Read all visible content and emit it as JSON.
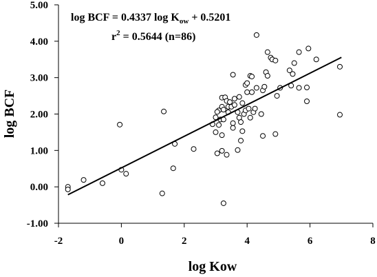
{
  "chart_data": {
    "type": "scatter",
    "title": "",
    "xlabel": "log Kow",
    "ylabel": "log BCF",
    "xlim": [
      -2,
      8
    ],
    "ylim": [
      -1,
      5
    ],
    "x_ticks": [
      "-2",
      "0",
      "2",
      "4",
      "6",
      "8"
    ],
    "y_ticks": [
      "-1.00",
      "0.00",
      "1.00",
      "2.00",
      "3.00",
      "4.00",
      "5.00"
    ],
    "grid": false,
    "legend": "none",
    "annotation": {
      "equation_prefix": "log BCF = 0.4337 log K",
      "equation_sub": "ow",
      "equation_suffix": " + 0.5201",
      "r2_prefix": "r",
      "r2_sup": "2",
      "r2_suffix": " = 0.5644 (n=86)"
    },
    "regression": {
      "slope": 0.4337,
      "intercept": 0.5201,
      "x_range": [
        -1.7,
        7.0
      ]
    },
    "points": [
      [
        -1.7,
        0.0
      ],
      [
        -1.7,
        -0.07
      ],
      [
        -1.2,
        0.19
      ],
      [
        -0.6,
        0.1
      ],
      [
        -0.05,
        1.71
      ],
      [
        0.0,
        0.47
      ],
      [
        0.15,
        0.36
      ],
      [
        1.3,
        -0.18
      ],
      [
        1.35,
        2.07
      ],
      [
        1.65,
        0.51
      ],
      [
        1.7,
        1.18
      ],
      [
        2.3,
        1.04
      ],
      [
        2.9,
        1.72
      ],
      [
        3.0,
        1.91
      ],
      [
        3.0,
        1.5
      ],
      [
        3.05,
        0.92
      ],
      [
        3.1,
        1.7
      ],
      [
        3.15,
        1.85
      ],
      [
        3.1,
        2.1
      ],
      [
        3.2,
        2.45
      ],
      [
        3.2,
        2.2
      ],
      [
        3.2,
        1.42
      ],
      [
        3.2,
        0.99
      ],
      [
        3.25,
        2.12
      ],
      [
        3.25,
        1.85
      ],
      [
        3.3,
        2.46
      ],
      [
        3.25,
        -0.45
      ],
      [
        3.35,
        0.88
      ],
      [
        3.35,
        2.36
      ],
      [
        3.4,
        2.2
      ],
      [
        3.4,
        2.05
      ],
      [
        3.5,
        2.2
      ],
      [
        3.55,
        1.75
      ],
      [
        3.55,
        1.62
      ],
      [
        3.6,
        2.25
      ],
      [
        3.55,
        3.08
      ],
      [
        3.6,
        2.42
      ],
      [
        3.7,
        2.05
      ],
      [
        3.7,
        1.01
      ],
      [
        3.75,
        1.9
      ],
      [
        3.75,
        2.47
      ],
      [
        3.8,
        1.78
      ],
      [
        3.8,
        1.27
      ],
      [
        3.85,
        2.3
      ],
      [
        3.85,
        1.53
      ],
      [
        3.9,
        2.0
      ],
      [
        3.95,
        2.1
      ],
      [
        3.95,
        2.8
      ],
      [
        4.0,
        2.85
      ],
      [
        4.0,
        2.6
      ],
      [
        4.05,
        2.15
      ],
      [
        4.1,
        1.9
      ],
      [
        4.1,
        3.05
      ],
      [
        4.15,
        2.6
      ],
      [
        4.2,
        2.05
      ],
      [
        4.25,
        2.15
      ],
      [
        4.3,
        2.72
      ],
      [
        4.3,
        4.17
      ],
      [
        4.45,
        2.0
      ],
      [
        4.5,
        1.4
      ],
      [
        4.5,
        2.65
      ],
      [
        4.55,
        2.75
      ],
      [
        4.6,
        3.15
      ],
      [
        4.65,
        3.05
      ],
      [
        4.65,
        3.7
      ],
      [
        4.75,
        3.55
      ],
      [
        4.8,
        3.5
      ],
      [
        4.9,
        3.47
      ],
      [
        4.9,
        1.45
      ],
      [
        4.95,
        2.5
      ],
      [
        5.05,
        2.72
      ],
      [
        5.35,
        3.2
      ],
      [
        5.4,
        2.78
      ],
      [
        5.45,
        3.1
      ],
      [
        5.5,
        3.4
      ],
      [
        5.65,
        3.7
      ],
      [
        5.65,
        2.72
      ],
      [
        5.9,
        2.73
      ],
      [
        5.9,
        2.35
      ],
      [
        5.95,
        3.8
      ],
      [
        6.2,
        3.5
      ],
      [
        6.95,
        3.3
      ],
      [
        6.95,
        1.98
      ],
      [
        4.15,
        3.03
      ],
      [
        3.45,
        2.33
      ],
      [
        3.05,
        2.06
      ]
    ]
  }
}
